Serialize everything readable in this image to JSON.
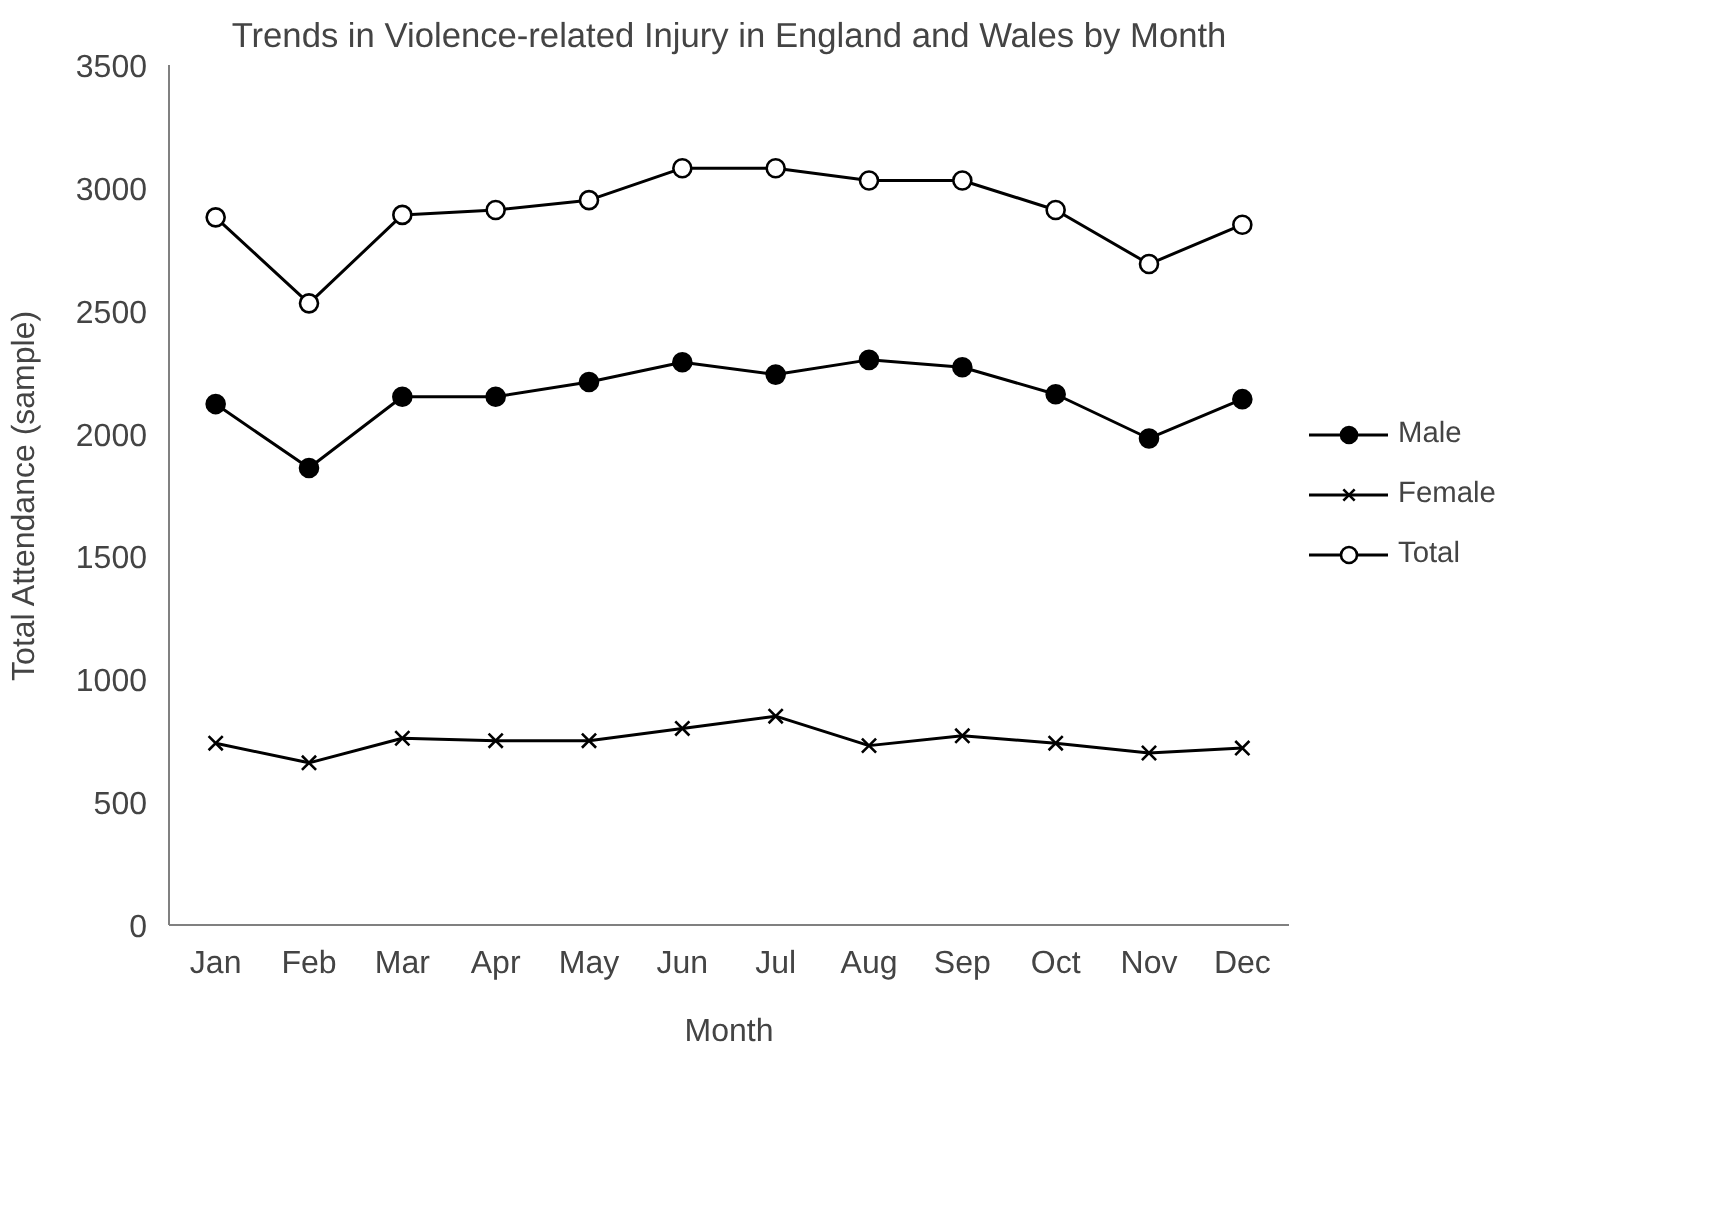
{
  "chart_data": {
    "type": "line",
    "title": "Trends in Violence-related Injury in England and Wales by Month",
    "xlabel": "Month",
    "ylabel": "Total Attendance (sample)",
    "categories": [
      "Jan",
      "Feb",
      "Mar",
      "Apr",
      "May",
      "Jun",
      "Jul",
      "Aug",
      "Sep",
      "Oct",
      "Nov",
      "Dec"
    ],
    "series": [
      {
        "name": "Male",
        "color": "#000000",
        "marker": "circle",
        "values": [
          2120,
          1860,
          2150,
          2150,
          2210,
          2290,
          2240,
          2300,
          2270,
          2160,
          1980,
          2140
        ]
      },
      {
        "name": "Female",
        "color": "#000000",
        "marker": "cross",
        "values": [
          740,
          660,
          760,
          750,
          750,
          800,
          850,
          730,
          770,
          740,
          700,
          720
        ]
      },
      {
        "name": "Total",
        "color": "#000000",
        "marker": "circle_open",
        "values": [
          2880,
          2530,
          2890,
          2910,
          2950,
          3080,
          3080,
          3030,
          3030,
          2910,
          2690,
          2850
        ]
      }
    ],
    "ylim": [
      0,
      3500
    ],
    "yticks": [
      0,
      500,
      1000,
      1500,
      2000,
      2500,
      3000,
      3500
    ],
    "grid": false,
    "legend": "right",
    "line_style": "solid"
  }
}
